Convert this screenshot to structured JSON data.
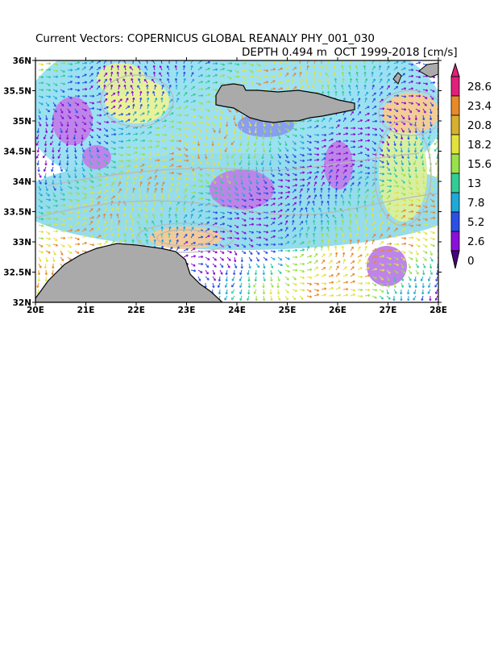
{
  "title": {
    "line1": "Current Vectors: COPERNICUS GLOBAL REANALY PHY_001_030",
    "depth": "DEPTH 0.494 m",
    "period": "OCT 1999-2018",
    "units": "[cm/s]"
  },
  "map": {
    "lon_range": [
      20,
      28
    ],
    "lat_range": [
      32,
      36
    ],
    "x_ticks": [
      "20E",
      "21E",
      "22E",
      "23E",
      "24E",
      "25E",
      "26E",
      "27E",
      "28E"
    ],
    "y_ticks": [
      "36N",
      "35.5N",
      "35N",
      "34.5N",
      "34N",
      "33.5N",
      "33N",
      "32.5N",
      "32N"
    ],
    "land_color": "#aaaaaa",
    "contour_color": "#b8b8b8",
    "features": [
      {
        "name": "crete-island",
        "type": "land"
      },
      {
        "name": "libya-coast",
        "type": "land"
      },
      {
        "name": "rhodes-karpathos-islands",
        "type": "land"
      }
    ]
  },
  "colorbar": {
    "labels": [
      "28.6",
      "23.4",
      "20.8",
      "18.2",
      "15.6",
      "13",
      "7.8",
      "5.2",
      "2.6",
      "0"
    ],
    "colors": [
      "#e0207a",
      "#e88a2a",
      "#d8b030",
      "#e2e23c",
      "#9ae04a",
      "#34cc96",
      "#20a8d8",
      "#2a50e6",
      "#8a10d8",
      "#4a0080"
    ],
    "extend": "both"
  }
}
